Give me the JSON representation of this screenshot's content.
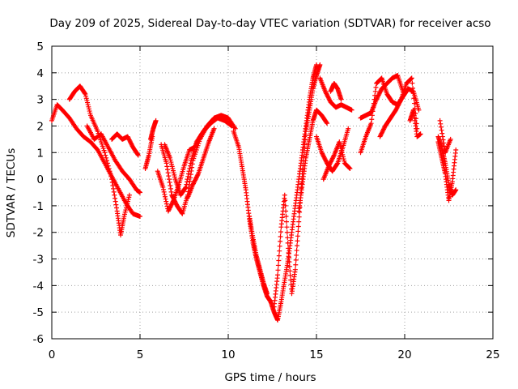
{
  "chart_data": {
    "type": "scatter",
    "title": "Day 209 of 2025, Sidereal Day-to-day VTEC variation (SDTVAR) for receiver acso",
    "xlabel": "GPS time / hours",
    "ylabel": "SDTVAR / TECUs",
    "xlim": [
      0,
      25
    ],
    "ylim": [
      -6,
      5
    ],
    "xticks": [
      0,
      5,
      10,
      15,
      20,
      25
    ],
    "yticks": [
      -6,
      -5,
      -4,
      -3,
      -2,
      -1,
      0,
      1,
      2,
      3,
      4,
      5
    ],
    "grid": true,
    "marker": "+",
    "color": "#ff0000",
    "series": [
      {
        "name": "SDTVAR",
        "tracks": [
          {
            "x": [
              0.0,
              0.3,
              0.6,
              1.0,
              1.4,
              1.8,
              2.2,
              2.6,
              3.0,
              3.4,
              3.8,
              4.2,
              4.6,
              5.0
            ],
            "y": [
              2.2,
              2.8,
              2.6,
              2.3,
              1.9,
              1.6,
              1.4,
              1.1,
              0.6,
              0.1,
              -0.4,
              -0.9,
              -1.3,
              -1.4
            ]
          },
          {
            "x": [
              1.0,
              1.3,
              1.6,
              1.9,
              2.2,
              2.6,
              3.0,
              3.4,
              3.7,
              3.9,
              4.1,
              4.4
            ],
            "y": [
              3.0,
              3.3,
              3.5,
              3.2,
              2.4,
              1.8,
              1.0,
              0.0,
              -1.2,
              -2.1,
              -1.4,
              -0.6
            ]
          },
          {
            "x": [
              2.0,
              2.4,
              2.8,
              3.2,
              3.6,
              4.0,
              4.4,
              4.8,
              5.0
            ],
            "y": [
              2.0,
              1.5,
              1.7,
              1.2,
              0.7,
              0.3,
              0.0,
              -0.4,
              -0.5
            ]
          },
          {
            "x": [
              3.4,
              3.7,
              4.0,
              4.3,
              4.6,
              4.9
            ],
            "y": [
              1.5,
              1.7,
              1.5,
              1.6,
              1.2,
              0.9
            ]
          },
          {
            "x": [
              5.3,
              5.5,
              5.7
            ],
            "y": [
              0.4,
              0.9,
              1.6
            ]
          },
          {
            "x": [
              5.6,
              5.75,
              5.9
            ],
            "y": [
              1.5,
              1.9,
              2.2
            ]
          },
          {
            "x": [
              6.2,
              6.5,
              6.8,
              7.1,
              7.4,
              7.7,
              8.0,
              8.4,
              8.8,
              9.2,
              9.6,
              10.0,
              10.4
            ],
            "y": [
              1.3,
              0.6,
              -0.6,
              -1.0,
              -1.3,
              -0.6,
              0.7,
              1.5,
              2.0,
              2.3,
              2.4,
              2.3,
              1.9
            ]
          },
          {
            "x": [
              6.0,
              6.3,
              6.6,
              6.9,
              7.2,
              7.5,
              7.8,
              8.1,
              8.4,
              8.7,
              9.0
            ],
            "y": [
              0.3,
              -0.3,
              -1.2,
              -0.8,
              -0.2,
              0.5,
              1.1,
              1.2,
              1.6,
              1.9,
              2.1
            ]
          },
          {
            "x": [
              6.4,
              6.7,
              7.0,
              7.3,
              7.6,
              7.9,
              8.2,
              8.6,
              9.0,
              9.4,
              9.8,
              10.2
            ],
            "y": [
              1.3,
              0.8,
              0.0,
              -0.6,
              -0.3,
              0.7,
              1.4,
              1.8,
              2.1,
              2.3,
              2.2,
              2.0
            ]
          },
          {
            "x": [
              7.7,
              8.0,
              8.3,
              8.6,
              8.9,
              9.2
            ],
            "y": [
              -0.7,
              -0.2,
              0.2,
              0.8,
              1.4,
              1.9
            ]
          },
          {
            "x": [
              10.3,
              10.6,
              10.8,
              11.0,
              11.2,
              11.4,
              11.6,
              11.8,
              12.0,
              12.2,
              12.4,
              12.6,
              12.8,
              13.0,
              13.2,
              13.4,
              13.6,
              13.8,
              14.0,
              14.2,
              14.4,
              14.6,
              14.8,
              15.0
            ],
            "y": [
              1.8,
              1.2,
              0.4,
              -0.4,
              -1.5,
              -2.4,
              -3.0,
              -3.5,
              -4.0,
              -4.4,
              -4.6,
              -5.0,
              -5.3,
              -4.6,
              -3.8,
              -3.0,
              -2.0,
              -1.0,
              0.0,
              1.0,
              2.0,
              3.0,
              3.8,
              4.3
            ]
          },
          {
            "x": [
              11.2,
              11.4,
              11.6,
              11.8,
              12.0,
              12.2
            ],
            "y": [
              -1.4,
              -2.2,
              -2.9,
              -3.4,
              -3.9,
              -4.3
            ]
          },
          {
            "x": [
              12.6,
              12.8,
              13.0,
              13.2,
              13.4,
              13.6,
              13.8,
              14.0,
              14.2,
              14.4,
              14.6,
              14.8,
              15.0,
              15.2
            ],
            "y": [
              -4.8,
              -3.6,
              -1.8,
              -0.6,
              -2.6,
              -4.3,
              -3.4,
              -1.6,
              0.2,
              1.8,
              2.6,
              3.4,
              3.9,
              4.3
            ]
          },
          {
            "x": [
              14.0,
              14.2,
              14.4,
              14.6,
              14.8,
              15.0,
              15.3,
              15.6
            ],
            "y": [
              -1.2,
              -0.2,
              0.8,
              1.5,
              2.2,
              2.6,
              2.4,
              2.1
            ]
          },
          {
            "x": [
              15.2,
              15.5,
              15.8,
              16.1,
              16.4,
              16.7,
              17.0
            ],
            "y": [
              3.8,
              3.3,
              2.9,
              2.7,
              2.8,
              2.7,
              2.6
            ]
          },
          {
            "x": [
              15.0,
              15.3,
              15.6,
              15.9,
              16.2,
              16.5,
              16.8
            ],
            "y": [
              1.6,
              1.0,
              0.6,
              0.3,
              0.6,
              1.2,
              1.9
            ]
          },
          {
            "x": [
              15.4,
              15.7,
              16.0,
              16.3,
              16.6,
              16.9
            ],
            "y": [
              0.0,
              0.5,
              0.9,
              1.4,
              0.6,
              0.4
            ]
          },
          {
            "x": [
              15.8,
              16.0,
              16.2,
              16.4
            ],
            "y": [
              3.3,
              3.6,
              3.4,
              3.0
            ]
          },
          {
            "x": [
              17.5,
              17.8,
              18.1,
              18.4,
              18.7,
              19.0,
              19.3,
              19.6,
              19.9
            ],
            "y": [
              2.3,
              2.4,
              2.5,
              3.0,
              3.4,
              3.6,
              3.8,
              3.9,
              3.3
            ]
          },
          {
            "x": [
              17.5,
              17.8,
              18.1,
              18.4,
              18.7,
              19.0,
              19.3,
              19.6,
              19.9,
              20.2,
              20.5,
              20.8
            ],
            "y": [
              1.0,
              1.6,
              2.1,
              3.6,
              3.8,
              3.2,
              2.9,
              2.8,
              3.1,
              3.4,
              3.3,
              2.6
            ]
          },
          {
            "x": [
              18.6,
              18.9,
              19.2,
              19.5,
              19.8,
              20.1,
              20.4,
              20.7
            ],
            "y": [
              1.6,
              2.0,
              2.3,
              2.6,
              3.0,
              3.6,
              3.8,
              1.9
            ]
          },
          {
            "x": [
              20.3,
              20.5,
              20.7,
              20.9
            ],
            "y": [
              2.2,
              2.6,
              1.6,
              1.7
            ]
          },
          {
            "x": [
              21.9,
              22.1,
              22.3,
              22.5,
              22.7,
              22.9
            ],
            "y": [
              1.6,
              1.2,
              0.6,
              -0.2,
              -0.6,
              -0.4
            ]
          },
          {
            "x": [
              21.9,
              22.1,
              22.3,
              22.5,
              22.7,
              22.9
            ],
            "y": [
              1.4,
              0.8,
              0.2,
              -0.8,
              -0.1,
              1.1
            ]
          },
          {
            "x": [
              22.0,
              22.3,
              22.6
            ],
            "y": [
              2.2,
              1.0,
              1.5
            ]
          }
        ]
      }
    ]
  }
}
